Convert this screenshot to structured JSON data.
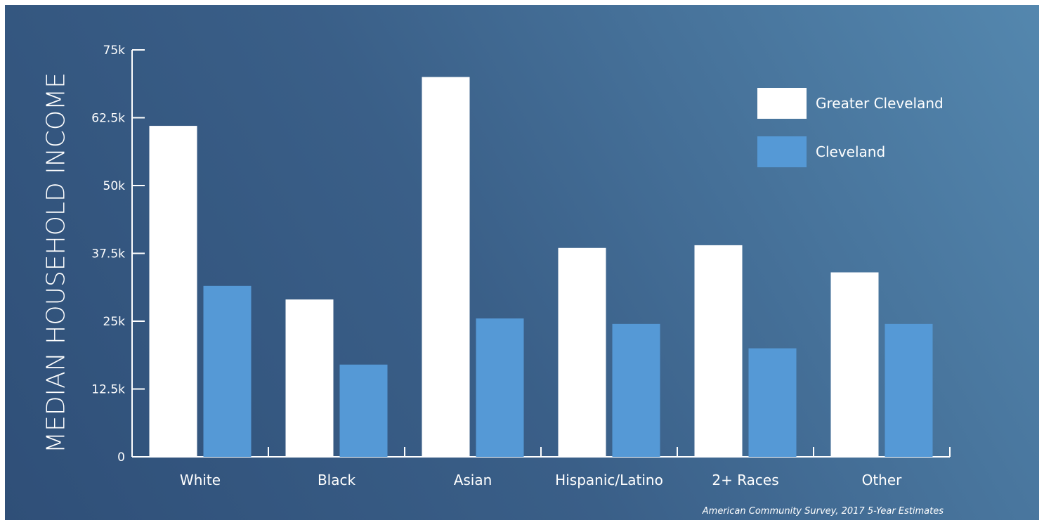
{
  "chart_data": {
    "type": "bar",
    "ylabel": "MEDIAN HOUSEHOLD INCOME",
    "xlabel": "",
    "categories": [
      "White",
      "Black",
      "Asian",
      "Hispanic/Latino",
      "2+ Races",
      "Other"
    ],
    "series": [
      {
        "name": "Greater Cleveland",
        "color": "#ffffff",
        "values": [
          61000,
          29000,
          70000,
          38500,
          39000,
          34000
        ]
      },
      {
        "name": "Cleveland",
        "color": "#5599d6",
        "values": [
          31500,
          17000,
          25500,
          24500,
          20000,
          24500
        ]
      }
    ],
    "ylim": [
      0,
      75000
    ],
    "yticks": [
      0,
      12500,
      25000,
      37500,
      50000,
      62500,
      75000
    ],
    "ytick_labels": [
      "0",
      "12.5k",
      "25k",
      "37.5k",
      "50k",
      "62.5k",
      "75k"
    ],
    "legend_position": "top-right",
    "source": "American Community Survey, 2017 5-Year Estimates"
  }
}
